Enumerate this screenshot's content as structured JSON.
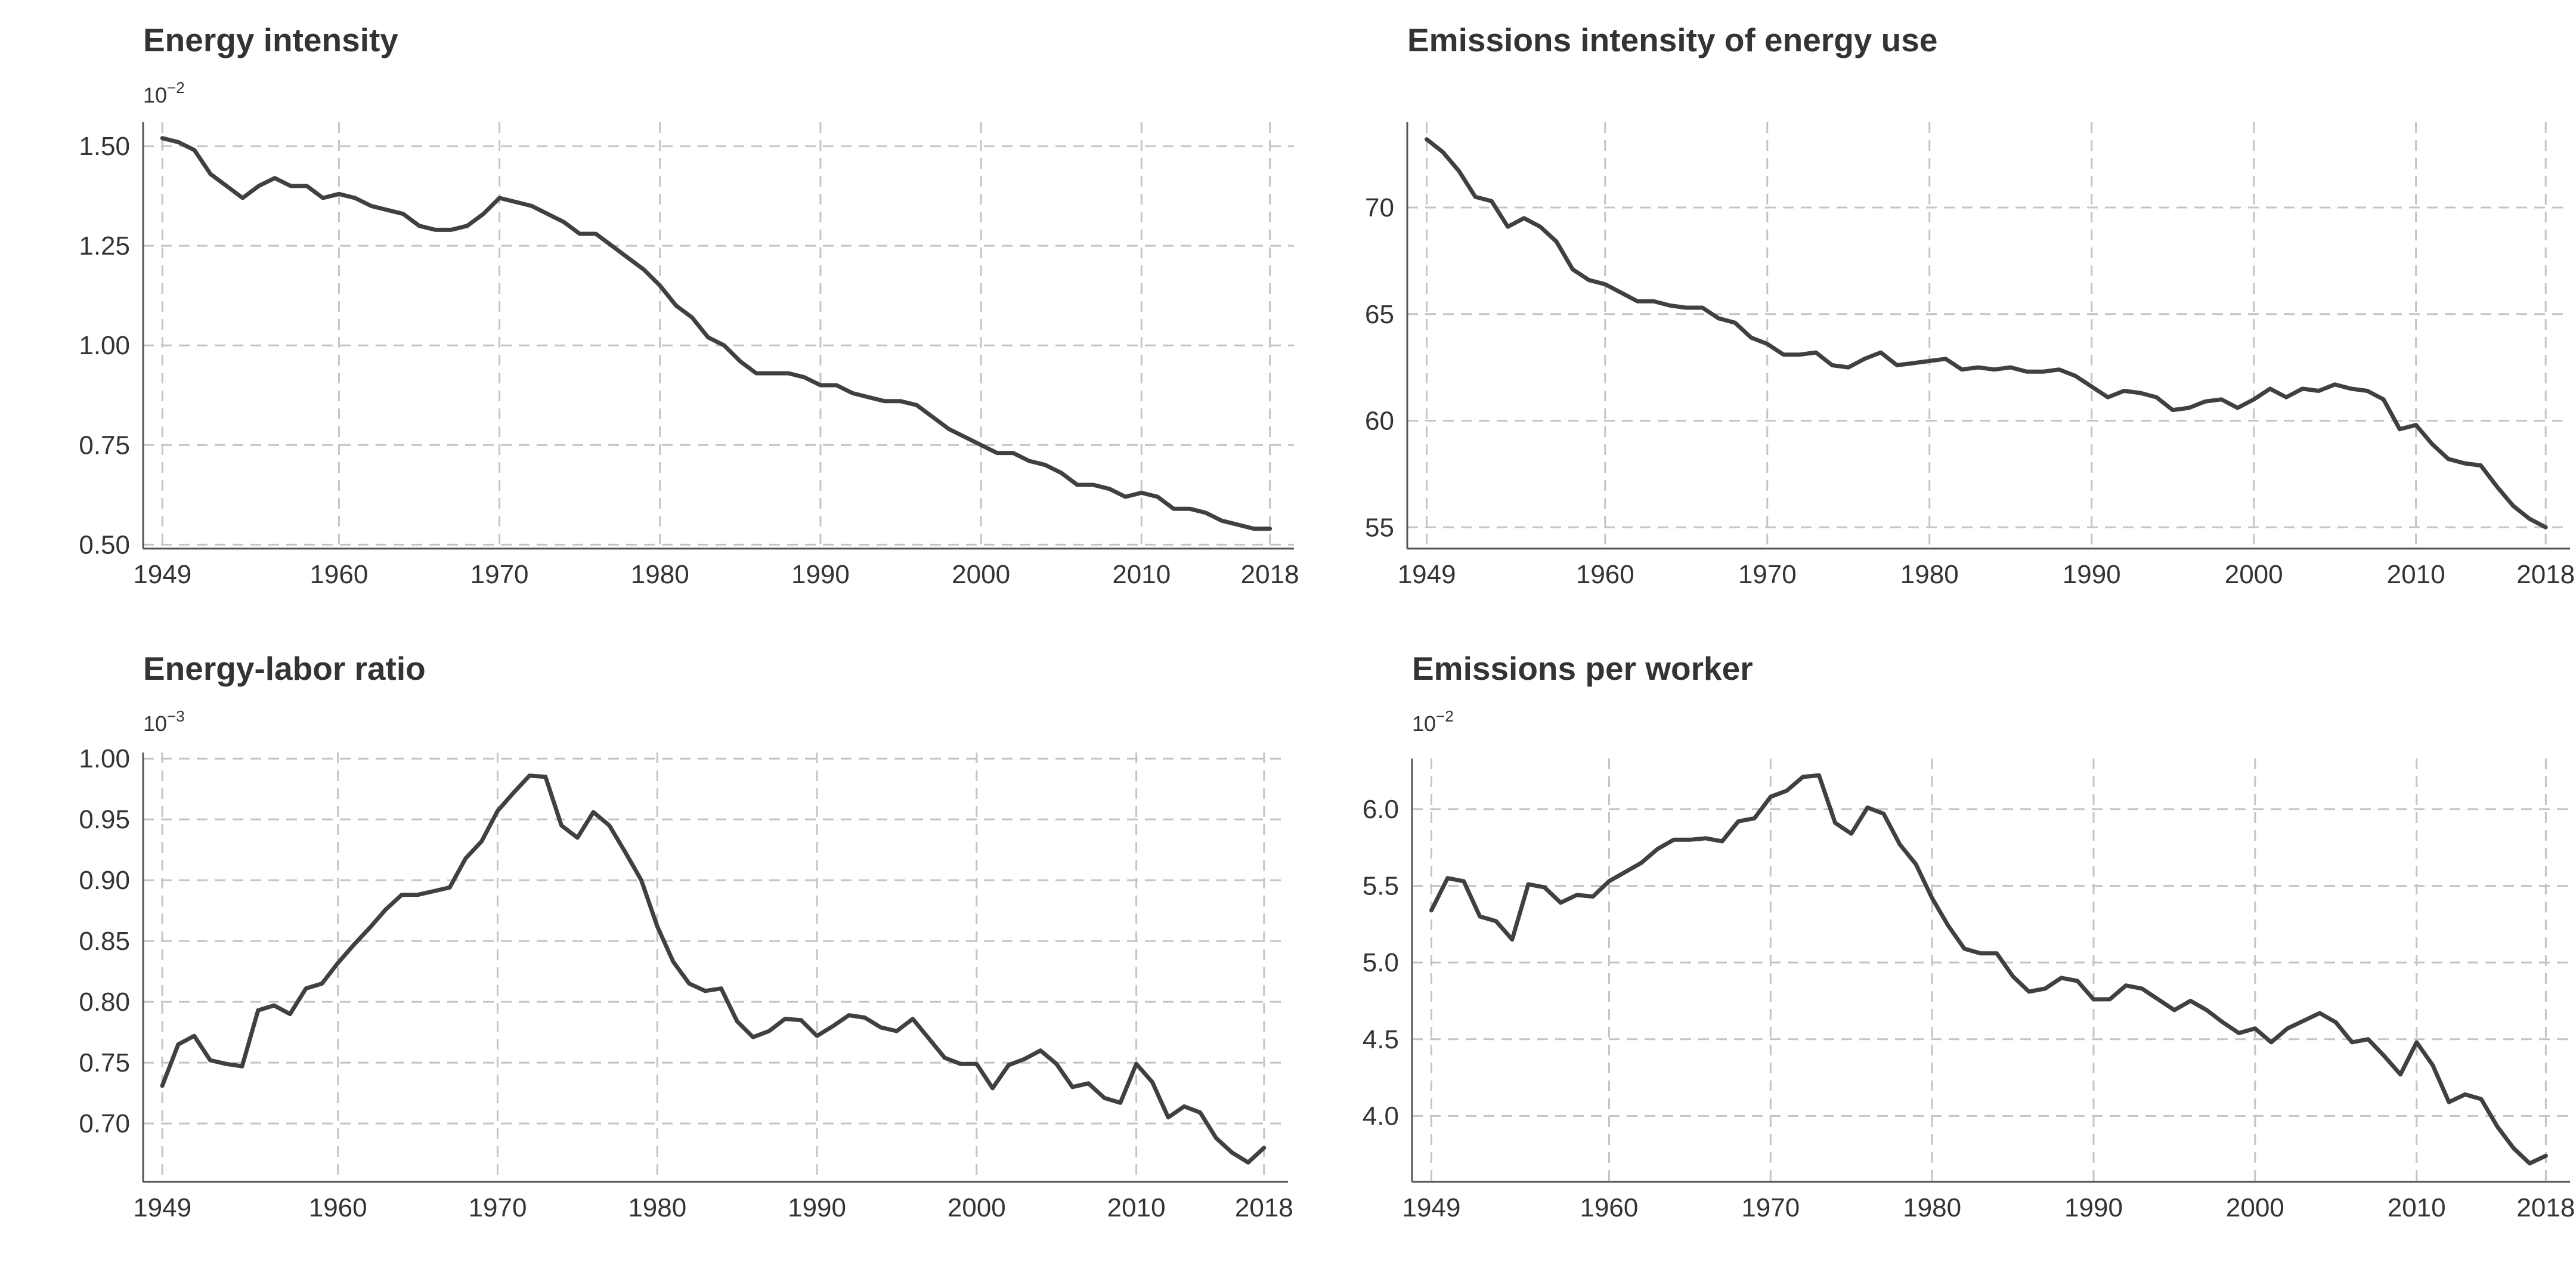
{
  "chart_data": [
    {
      "type": "line",
      "title": "Energy intensity",
      "scale_label": "10",
      "scale_exponent": "−2",
      "x": [
        1949,
        1950,
        1951,
        1952,
        1953,
        1954,
        1955,
        1956,
        1957,
        1958,
        1959,
        1960,
        1961,
        1962,
        1963,
        1964,
        1965,
        1966,
        1967,
        1968,
        1969,
        1970,
        1971,
        1972,
        1973,
        1974,
        1975,
        1976,
        1977,
        1978,
        1979,
        1980,
        1981,
        1982,
        1983,
        1984,
        1985,
        1986,
        1987,
        1988,
        1989,
        1990,
        1991,
        1992,
        1993,
        1994,
        1995,
        1996,
        1997,
        1998,
        1999,
        2000,
        2001,
        2002,
        2003,
        2004,
        2005,
        2006,
        2007,
        2008,
        2009,
        2010,
        2011,
        2012,
        2013,
        2014,
        2015,
        2016,
        2017,
        2018
      ],
      "values": [
        1.52,
        1.51,
        1.49,
        1.43,
        1.4,
        1.37,
        1.4,
        1.42,
        1.4,
        1.4,
        1.37,
        1.38,
        1.37,
        1.35,
        1.34,
        1.33,
        1.3,
        1.29,
        1.29,
        1.3,
        1.33,
        1.37,
        1.36,
        1.35,
        1.33,
        1.31,
        1.28,
        1.28,
        1.25,
        1.22,
        1.19,
        1.15,
        1.1,
        1.07,
        1.02,
        1.0,
        0.96,
        0.93,
        0.93,
        0.93,
        0.92,
        0.9,
        0.9,
        0.88,
        0.87,
        0.86,
        0.86,
        0.85,
        0.82,
        0.79,
        0.77,
        0.75,
        0.73,
        0.73,
        0.71,
        0.7,
        0.68,
        0.65,
        0.65,
        0.64,
        0.62,
        0.63,
        0.62,
        0.59,
        0.59,
        0.58,
        0.56,
        0.55,
        0.54,
        0.54
      ],
      "xlim": [
        1947.8,
        2019.5
      ],
      "ylim": [
        0.49,
        1.56
      ],
      "xticks": [
        1949,
        1960,
        1970,
        1980,
        1990,
        2000,
        2010,
        2018
      ],
      "xtick_labels": [
        "1949",
        "1960",
        "1970",
        "1980",
        "1990",
        "2000",
        "2010",
        "2018"
      ],
      "yticks": [
        0.5,
        0.75,
        1.0,
        1.25,
        1.5
      ],
      "ytick_labels": [
        "0.50",
        "0.75",
        "1.00",
        "1.25",
        "1.50"
      ],
      "grid": true,
      "line_color": "#404040"
    },
    {
      "type": "line",
      "title": "Emissions intensity of energy use",
      "scale_label": "",
      "scale_exponent": "",
      "x": [
        1949,
        1950,
        1951,
        1952,
        1953,
        1954,
        1955,
        1956,
        1957,
        1958,
        1959,
        1960,
        1961,
        1962,
        1963,
        1964,
        1965,
        1966,
        1967,
        1968,
        1969,
        1970,
        1971,
        1972,
        1973,
        1974,
        1975,
        1976,
        1977,
        1978,
        1979,
        1980,
        1981,
        1982,
        1983,
        1984,
        1985,
        1986,
        1987,
        1988,
        1989,
        1990,
        1991,
        1992,
        1993,
        1994,
        1995,
        1996,
        1997,
        1998,
        1999,
        2000,
        2001,
        2002,
        2003,
        2004,
        2005,
        2006,
        2007,
        2008,
        2009,
        2010,
        2011,
        2012,
        2013,
        2014,
        2015,
        2016,
        2017,
        2018
      ],
      "values": [
        73.2,
        72.6,
        71.7,
        70.5,
        70.3,
        69.1,
        69.5,
        69.1,
        68.4,
        67.1,
        66.6,
        66.4,
        66.0,
        65.6,
        65.6,
        65.4,
        65.3,
        65.3,
        64.8,
        64.6,
        63.9,
        63.6,
        63.1,
        63.1,
        63.2,
        62.6,
        62.5,
        62.9,
        63.2,
        62.6,
        62.7,
        62.8,
        62.9,
        62.4,
        62.5,
        62.4,
        62.5,
        62.3,
        62.3,
        62.4,
        62.1,
        61.6,
        61.1,
        61.4,
        61.3,
        61.1,
        60.5,
        60.6,
        60.9,
        61.0,
        60.6,
        61.0,
        61.5,
        61.1,
        61.5,
        61.4,
        61.7,
        61.5,
        61.4,
        61.0,
        59.6,
        59.8,
        58.9,
        58.2,
        58.0,
        57.9,
        56.9,
        56.0,
        55.4,
        55.0
      ],
      "xlim": [
        1947.8,
        2019.5
      ],
      "ylim": [
        54.0,
        74.0
      ],
      "xticks": [
        1949,
        1960,
        1970,
        1980,
        1990,
        2000,
        2010,
        2018
      ],
      "xtick_labels": [
        "1949",
        "1960",
        "1970",
        "1980",
        "1990",
        "2000",
        "2010",
        "2018"
      ],
      "yticks": [
        55,
        60,
        65,
        70
      ],
      "ytick_labels": [
        "55",
        "60",
        "65",
        "70"
      ],
      "grid": true,
      "line_color": "#404040"
    },
    {
      "type": "line",
      "title": "Energy-labor ratio",
      "scale_label": "10",
      "scale_exponent": "−3",
      "x": [
        1949,
        1950,
        1951,
        1952,
        1953,
        1954,
        1955,
        1956,
        1957,
        1958,
        1959,
        1960,
        1961,
        1962,
        1963,
        1964,
        1965,
        1966,
        1967,
        1968,
        1969,
        1970,
        1971,
        1972,
        1973,
        1974,
        1975,
        1976,
        1977,
        1978,
        1979,
        1980,
        1981,
        1982,
        1983,
        1984,
        1985,
        1986,
        1987,
        1988,
        1989,
        1990,
        1991,
        1992,
        1993,
        1994,
        1995,
        1996,
        1997,
        1998,
        1999,
        2000,
        2001,
        2002,
        2003,
        2004,
        2005,
        2006,
        2007,
        2008,
        2009,
        2010,
        2011,
        2012,
        2013,
        2014,
        2015,
        2016,
        2017,
        2018
      ],
      "values": [
        0.731,
        0.765,
        0.772,
        0.752,
        0.749,
        0.747,
        0.793,
        0.797,
        0.79,
        0.811,
        0.815,
        0.832,
        0.847,
        0.861,
        0.876,
        0.888,
        0.888,
        0.891,
        0.894,
        0.918,
        0.932,
        0.957,
        0.972,
        0.986,
        0.985,
        0.945,
        0.935,
        0.956,
        0.945,
        0.923,
        0.9,
        0.862,
        0.833,
        0.815,
        0.809,
        0.811,
        0.784,
        0.771,
        0.776,
        0.786,
        0.785,
        0.772,
        0.78,
        0.789,
        0.787,
        0.779,
        0.776,
        0.786,
        0.77,
        0.754,
        0.749,
        0.749,
        0.729,
        0.748,
        0.753,
        0.76,
        0.749,
        0.73,
        0.733,
        0.721,
        0.717,
        0.749,
        0.734,
        0.705,
        0.714,
        0.709,
        0.688,
        0.676,
        0.668,
        0.68
      ],
      "xlim": [
        1947.8,
        2019.5
      ],
      "ylim": [
        0.652,
        1.005
      ],
      "xticks": [
        1949,
        1960,
        1970,
        1980,
        1990,
        2000,
        2010,
        2018
      ],
      "xtick_labels": [
        "1949",
        "1960",
        "1970",
        "1980",
        "1990",
        "2000",
        "2010",
        "2018"
      ],
      "yticks": [
        0.7,
        0.75,
        0.8,
        0.85,
        0.9,
        0.95,
        1.0
      ],
      "ytick_labels": [
        "0.70",
        "0.75",
        "0.80",
        "0.85",
        "0.90",
        "0.95",
        "1.00"
      ],
      "grid": true,
      "line_color": "#404040"
    },
    {
      "type": "line",
      "title": "Emissions per worker",
      "scale_label": "10",
      "scale_exponent": "−2",
      "x": [
        1949,
        1950,
        1951,
        1952,
        1953,
        1954,
        1955,
        1956,
        1957,
        1958,
        1959,
        1960,
        1961,
        1962,
        1963,
        1964,
        1965,
        1966,
        1967,
        1968,
        1969,
        1970,
        1971,
        1972,
        1973,
        1974,
        1975,
        1976,
        1977,
        1978,
        1979,
        1980,
        1981,
        1982,
        1983,
        1984,
        1985,
        1986,
        1987,
        1988,
        1989,
        1990,
        1991,
        1992,
        1993,
        1994,
        1995,
        1996,
        1997,
        1998,
        1999,
        2000,
        2001,
        2002,
        2003,
        2004,
        2005,
        2006,
        2007,
        2008,
        2009,
        2010,
        2011,
        2012,
        2013,
        2014,
        2015,
        2016,
        2017,
        2018
      ],
      "values": [
        5.34,
        5.55,
        5.53,
        5.3,
        5.27,
        5.15,
        5.51,
        5.49,
        5.39,
        5.44,
        5.43,
        5.53,
        5.59,
        5.65,
        5.74,
        5.8,
        5.8,
        5.81,
        5.79,
        5.92,
        5.94,
        6.08,
        6.12,
        6.21,
        6.22,
        5.91,
        5.84,
        6.01,
        5.97,
        5.77,
        5.64,
        5.42,
        5.24,
        5.09,
        5.06,
        5.06,
        4.91,
        4.81,
        4.83,
        4.9,
        4.88,
        4.76,
        4.76,
        4.85,
        4.83,
        4.76,
        4.69,
        4.75,
        4.69,
        4.61,
        4.54,
        4.57,
        4.48,
        4.57,
        4.62,
        4.67,
        4.61,
        4.48,
        4.5,
        4.39,
        4.27,
        4.48,
        4.33,
        4.09,
        4.14,
        4.11,
        3.93,
        3.79,
        3.69,
        3.74
      ],
      "xlim": [
        1947.8,
        2019.5
      ],
      "ylim": [
        3.57,
        6.33
      ],
      "xticks": [
        1949,
        1960,
        1970,
        1980,
        1990,
        2000,
        2010,
        2018
      ],
      "xtick_labels": [
        "1949",
        "1960",
        "1970",
        "1980",
        "1990",
        "2000",
        "2010",
        "2018"
      ],
      "yticks": [
        4.0,
        4.5,
        5.0,
        5.5,
        6.0
      ],
      "ytick_labels": [
        "4.0",
        "4.5",
        "5.0",
        "5.5",
        "6.0"
      ],
      "grid": true,
      "line_color": "#404040"
    }
  ]
}
